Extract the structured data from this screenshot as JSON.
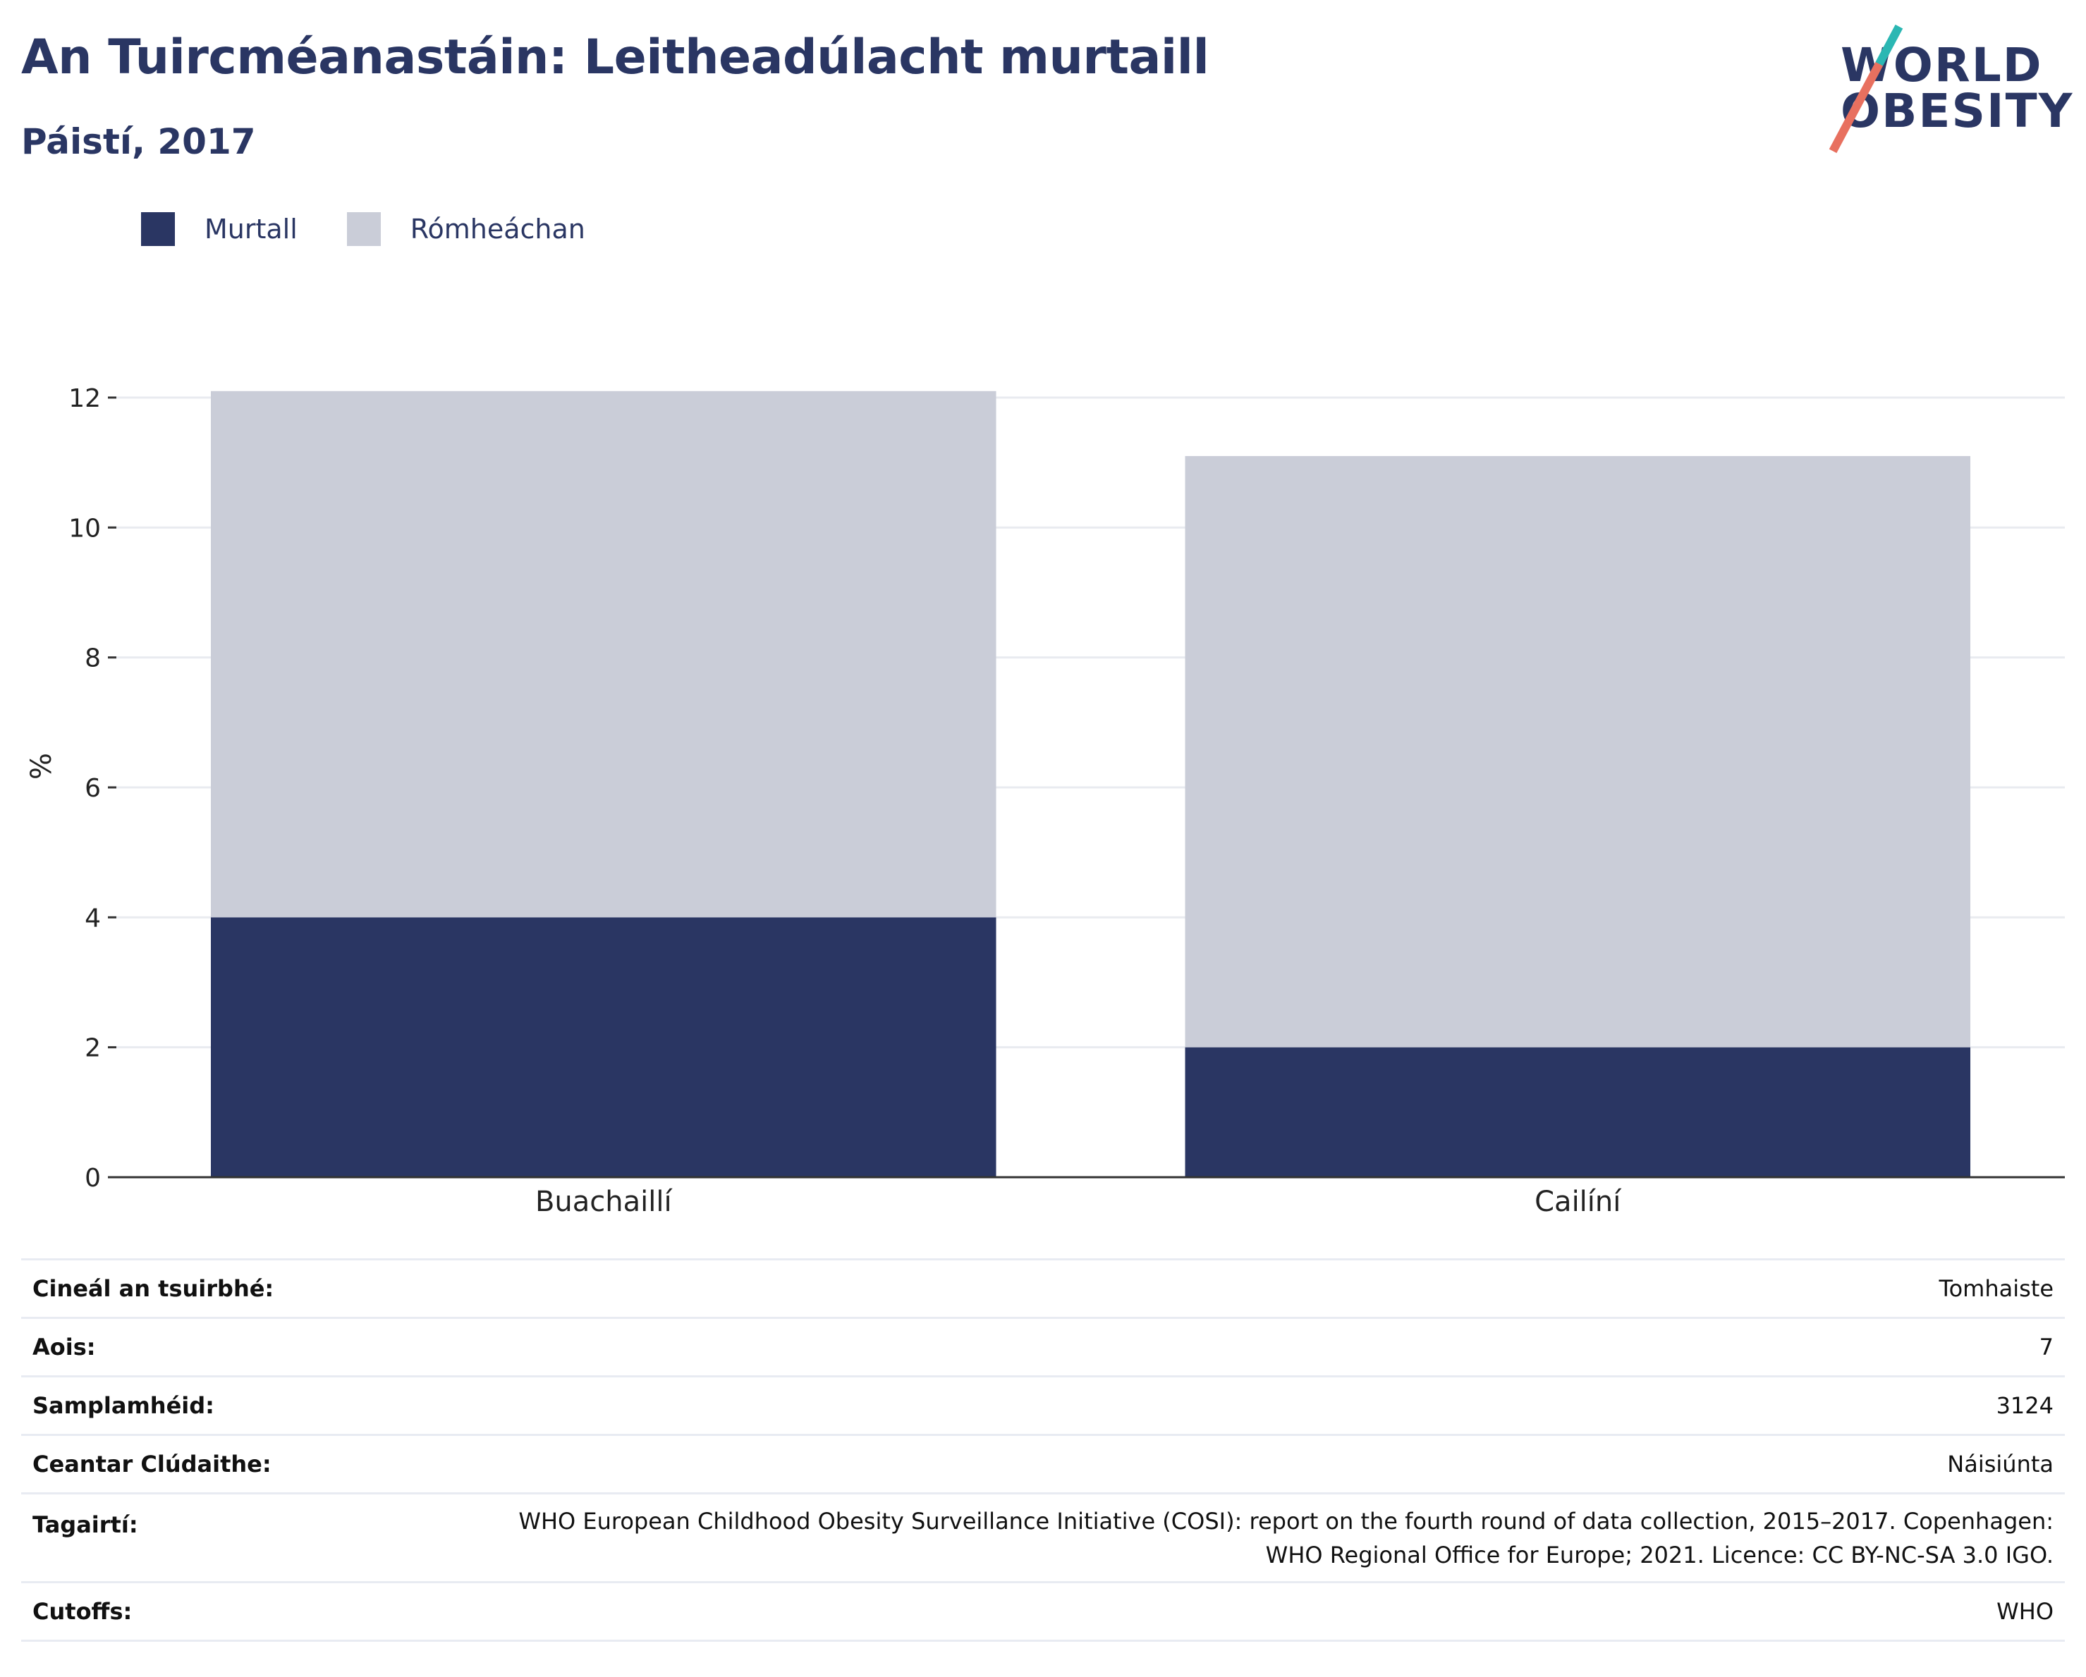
{
  "header": {
    "title": "An Tuircméanastáin: Leitheadúlacht murtaill",
    "subtitle": "Páistí, 2017"
  },
  "logo": {
    "line1": "WORLD",
    "line2": "OBESITY",
    "slash_color_top": "#2bb7b3",
    "slash_color_bottom": "#e8705f"
  },
  "legend": [
    {
      "label": "Murtall",
      "color": "#2a3663"
    },
    {
      "label": "Rómheáchan",
      "color": "#cacdd8"
    }
  ],
  "chart_data": {
    "type": "bar",
    "stacked": true,
    "categories": [
      "Buachaillí",
      "Cailíní"
    ],
    "series": [
      {
        "name": "Murtall",
        "values": [
          4,
          2
        ],
        "color": "#2a3663"
      },
      {
        "name": "Rómheáchan",
        "values": [
          8.1,
          9.1
        ],
        "color": "#cacdd8"
      }
    ],
    "ylabel": "%",
    "ylim": [
      0,
      12
    ],
    "yticks": [
      "0",
      "2",
      "4",
      "6",
      "8",
      "10",
      "12"
    ],
    "grid": true,
    "legend_position": "top-left"
  },
  "meta": [
    {
      "key": "Cineál an tsuirbhé:",
      "value": [
        "Tomhaiste"
      ]
    },
    {
      "key": "Aois:",
      "value": [
        "7"
      ]
    },
    {
      "key": "Samplamhéid:",
      "value": [
        "3124"
      ]
    },
    {
      "key": "Ceantar Clúdaithe:",
      "value": [
        "Náisiúnta"
      ]
    },
    {
      "key": "Tagairtí:",
      "value": [
        "WHO European Childhood Obesity Surveillance Initiative (COSI): report on the fourth round of data collection, 2015–2017. Copenhagen:",
        "WHO Regional Office for Europe; 2021. Licence: CC BY-NC-SA 3.0 IGO."
      ]
    },
    {
      "key": "Cutoffs:",
      "value": [
        "WHO"
      ]
    }
  ]
}
